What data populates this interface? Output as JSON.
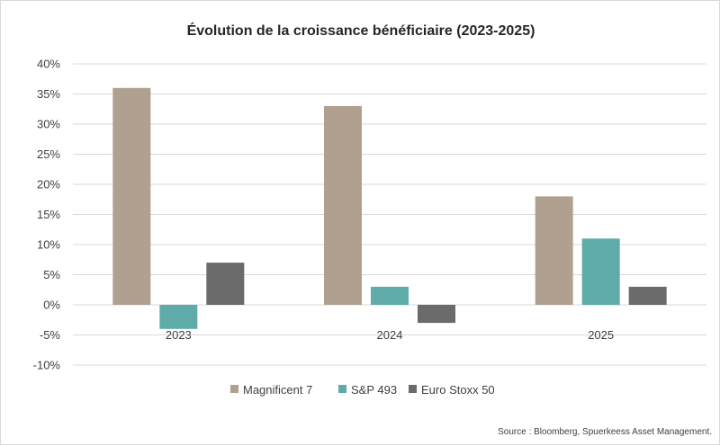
{
  "chart_data": {
    "type": "bar",
    "title": "Évolution de la croissance bénéficiaire (2023-2025)",
    "categories": [
      "2023",
      "2024",
      "2025"
    ],
    "series": [
      {
        "name": "Magnificent 7",
        "values": [
          36,
          33,
          18
        ],
        "color": "#b0a08f"
      },
      {
        "name": "S&P 493",
        "values": [
          -4,
          3,
          11
        ],
        "color": "#5eabaa"
      },
      {
        "name": "Euro Stoxx 50",
        "values": [
          7,
          -3,
          3
        ],
        "color": "#6b6b6b"
      }
    ],
    "ylim": [
      -10,
      40
    ],
    "ytick_step": 5,
    "ytick_labels": [
      "-10%",
      "-5%",
      "0%",
      "5%",
      "10%",
      "15%",
      "20%",
      "25%",
      "30%",
      "35%",
      "40%"
    ],
    "grid": true,
    "legend_position": "bottom",
    "xlabel": "",
    "ylabel": "",
    "source": "Source : Bloomberg, Spuerkeess Asset Management."
  }
}
